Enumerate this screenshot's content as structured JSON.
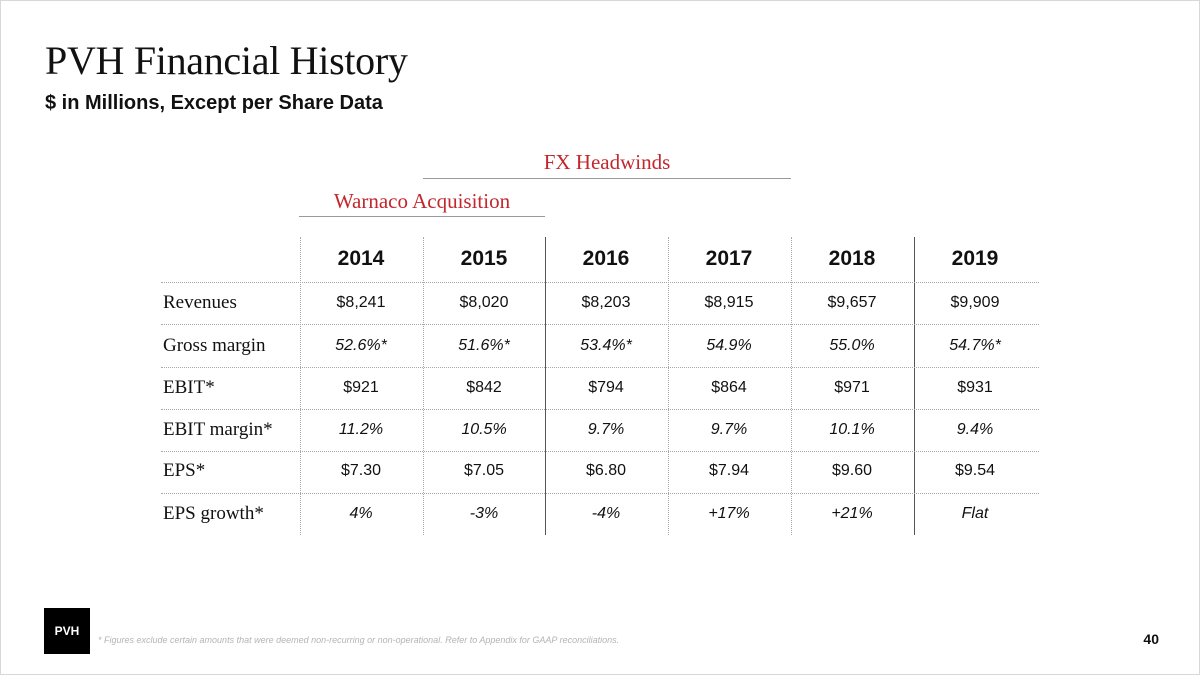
{
  "slide": {
    "title": "PVH Financial History",
    "subtitle": "$ in Millions, Except per Share Data",
    "annotations": {
      "fx_headwinds": "FX Headwinds",
      "warnaco_acquisition": "Warnaco Acquisition"
    },
    "accent_color": "#c2272d",
    "footnote": "* Figures exclude certain amounts that were deemed non-recurring or non-operational. Refer to Appendix for GAAP reconciliations.",
    "page_number": "40",
    "logo_text": "PVH"
  },
  "table": {
    "years": [
      "2014",
      "2015",
      "2016",
      "2017",
      "2018",
      "2019"
    ],
    "rows": [
      {
        "label": "Revenues",
        "italic": false,
        "values": [
          "$8,241",
          "$8,020",
          "$8,203",
          "$8,915",
          "$9,657",
          "$9,909"
        ]
      },
      {
        "label": "Gross margin",
        "italic": true,
        "values": [
          "52.6%*",
          "51.6%*",
          "53.4%*",
          "54.9%",
          "55.0%",
          "54.7%*"
        ]
      },
      {
        "label": "EBIT*",
        "italic": false,
        "values": [
          "$921",
          "$842",
          "$794",
          "$864",
          "$971",
          "$931"
        ]
      },
      {
        "label": "EBIT margin*",
        "italic": true,
        "values": [
          "11.2%",
          "10.5%",
          "9.7%",
          "9.7%",
          "10.1%",
          "9.4%"
        ]
      },
      {
        "label": "EPS*",
        "italic": false,
        "values": [
          "$7.30",
          "$7.05",
          "$6.80",
          "$7.94",
          "$9.60",
          "$9.54"
        ]
      },
      {
        "label": "EPS growth*",
        "italic": true,
        "values": [
          "4%",
          "-3%",
          "-4%",
          "+17%",
          "+21%",
          "Flat"
        ]
      }
    ]
  }
}
